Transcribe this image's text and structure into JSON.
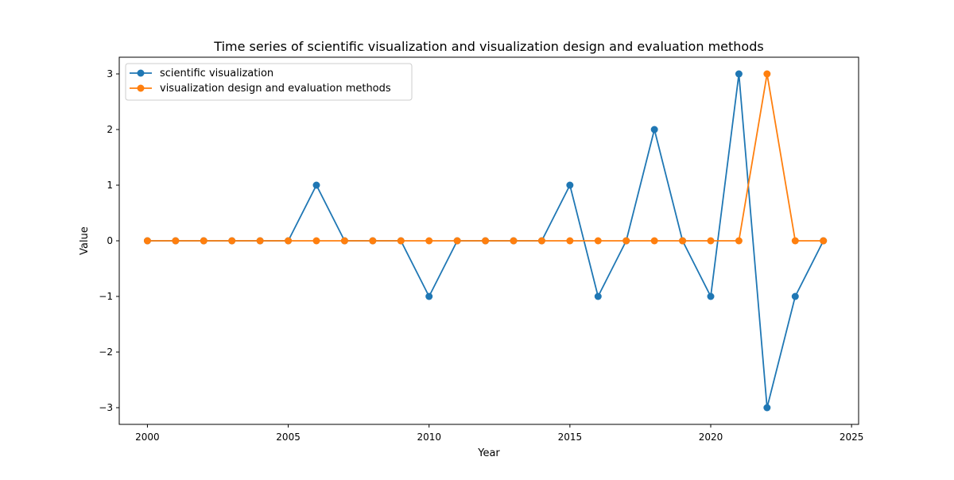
{
  "chart_data": {
    "type": "line",
    "title": "Time series of scientific visualization and visualization design and evaluation methods",
    "xlabel": "Year",
    "ylabel": "Value",
    "xlim": [
      1999.0,
      2025.25
    ],
    "ylim": [
      -3.3,
      3.3
    ],
    "xticks": [
      2000,
      2005,
      2010,
      2015,
      2020,
      2025
    ],
    "yticks": [
      -3,
      -2,
      -1,
      0,
      1,
      2,
      3
    ],
    "ytick_labels": [
      "−3",
      "−2",
      "−1",
      "0",
      "1",
      "2",
      "3"
    ],
    "grid": false,
    "legend_position": "upper-left",
    "x": [
      2000,
      2001,
      2002,
      2003,
      2004,
      2005,
      2006,
      2007,
      2008,
      2009,
      2010,
      2011,
      2012,
      2013,
      2014,
      2015,
      2016,
      2017,
      2018,
      2019,
      2020,
      2021,
      2022,
      2023,
      2024
    ],
    "series": [
      {
        "name": "scientific visualization",
        "color": "#1f77b4",
        "values": [
          0,
          0,
          0,
          0,
          0,
          0,
          1,
          0,
          0,
          0,
          -1,
          0,
          0,
          0,
          0,
          1,
          -1,
          0,
          2,
          0,
          -1,
          3,
          -3,
          -1,
          0
        ]
      },
      {
        "name": "visualization design and evaluation methods",
        "color": "#ff7f0e",
        "values": [
          0,
          0,
          0,
          0,
          0,
          0,
          0,
          0,
          0,
          0,
          0,
          0,
          0,
          0,
          0,
          0,
          0,
          0,
          0,
          0,
          0,
          0,
          3,
          0,
          0
        ]
      }
    ]
  }
}
